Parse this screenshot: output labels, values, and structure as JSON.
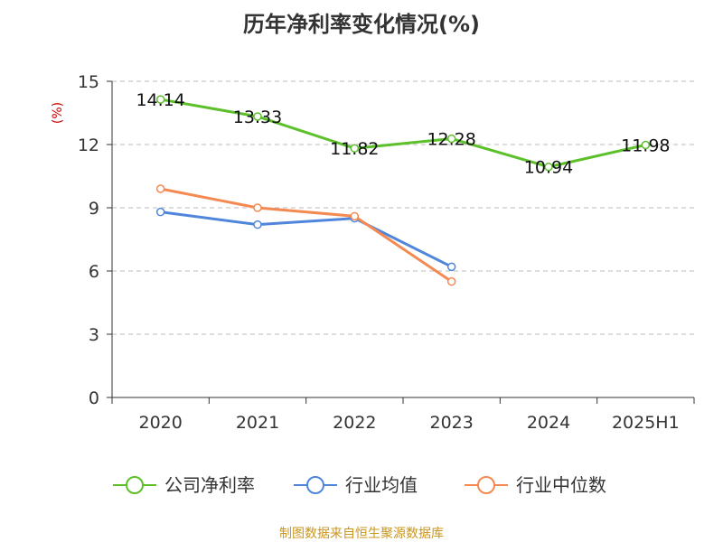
{
  "chart_data": {
    "type": "line",
    "title": "历年净利率变化情况(%)",
    "ylabel": "(%)",
    "categories": [
      "2020",
      "2021",
      "2022",
      "2023",
      "2024",
      "2025H1"
    ],
    "ylim": [
      0,
      15
    ],
    "yticks": [
      0,
      3,
      6,
      9,
      12,
      15
    ],
    "grid": true,
    "legend_position": "bottom",
    "series": [
      {
        "name": "公司净利率",
        "color": "#5cc02a",
        "values": [
          14.14,
          13.33,
          11.82,
          12.28,
          10.94,
          11.98
        ],
        "labels": [
          "14.14",
          "13.33",
          "11.82",
          "12.28",
          "10.94",
          "11.98"
        ]
      },
      {
        "name": "行业均值",
        "color": "#4f86dc",
        "values": [
          8.8,
          8.2,
          8.5,
          6.2,
          null,
          null
        ]
      },
      {
        "name": "行业中位数",
        "color": "#f48a52",
        "values": [
          9.9,
          9.0,
          8.6,
          5.5,
          null,
          null
        ]
      }
    ]
  },
  "source": "制图数据来自恒生聚源数据库"
}
